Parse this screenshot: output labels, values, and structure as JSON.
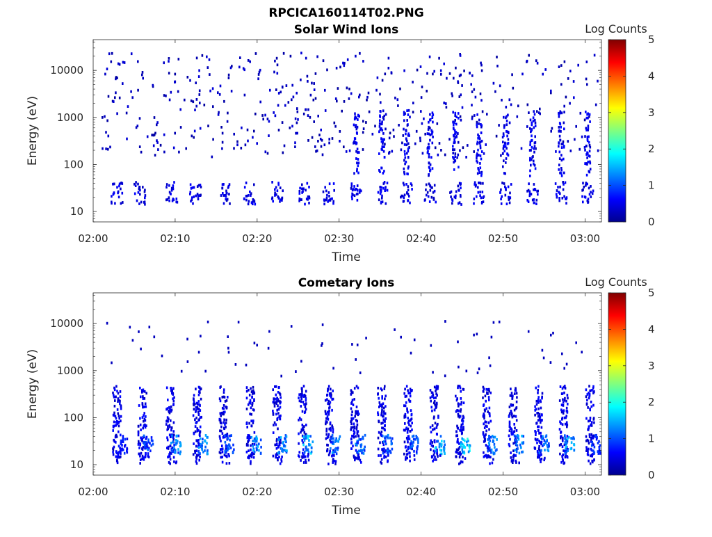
{
  "figure_title": "RPCICA160114T02.PNG",
  "colorbar": {
    "label": "Log Counts",
    "ticks": [
      0,
      1,
      2,
      3,
      4,
      5
    ],
    "range": [
      0,
      5
    ],
    "colormap": "jet"
  },
  "chart_data": [
    {
      "type": "heatmap",
      "title": "Solar Wind Ions",
      "xlabel": "Time",
      "ylabel": "Energy (eV)",
      "x_ticks": [
        "02:00",
        "02:10",
        "02:20",
        "02:30",
        "02:40",
        "02:50",
        "03:00"
      ],
      "x_range_minutes": [
        0,
        62
      ],
      "y_scale": "log",
      "y_ticks": [
        10,
        100,
        1000,
        10000
      ],
      "y_tick_labels": [
        "10",
        "100",
        "1000",
        "10000"
      ],
      "y_range": [
        6,
        45000
      ],
      "grid": false,
      "pattern": "sparse",
      "low_band_eV": [
        15,
        45
      ],
      "bursts_minutes": [
        2.8,
        5.6,
        9.5,
        12.4,
        15.9,
        19.0,
        22.4,
        25.6,
        28.6,
        32.0,
        35.1,
        38.1,
        41.0,
        44.1,
        47.0,
        50.2,
        53.5,
        57.0,
        60.2
      ]
    },
    {
      "type": "heatmap",
      "title": "Cometary Ions",
      "xlabel": "Time",
      "ylabel": "Energy (eV)",
      "x_ticks": [
        "02:00",
        "02:10",
        "02:20",
        "02:30",
        "02:40",
        "02:50",
        "03:00"
      ],
      "x_range_minutes": [
        0,
        62
      ],
      "y_scale": "log",
      "y_ticks": [
        10,
        100,
        1000,
        10000
      ],
      "y_tick_labels": [
        "10",
        "100",
        "1000",
        "10000"
      ],
      "y_range": [
        6,
        45000
      ],
      "grid": false,
      "pattern": "bursts",
      "bursts_minutes": [
        2.8,
        5.9,
        9.3,
        12.6,
        15.8,
        19.1,
        22.3,
        25.4,
        28.7,
        31.8,
        35.1,
        38.3,
        41.5,
        44.6,
        47.9,
        51.1,
        54.2,
        57.3,
        60.5
      ],
      "burst_peak_log_counts": [
        0.9,
        1.2,
        1.5,
        1.6,
        1.3,
        1.7,
        1.6,
        1.8,
        1.5,
        1.4,
        1.3,
        1.2,
        1.9,
        2.1,
        1.5,
        1.6,
        1.4,
        1.7,
        1.0
      ]
    }
  ]
}
